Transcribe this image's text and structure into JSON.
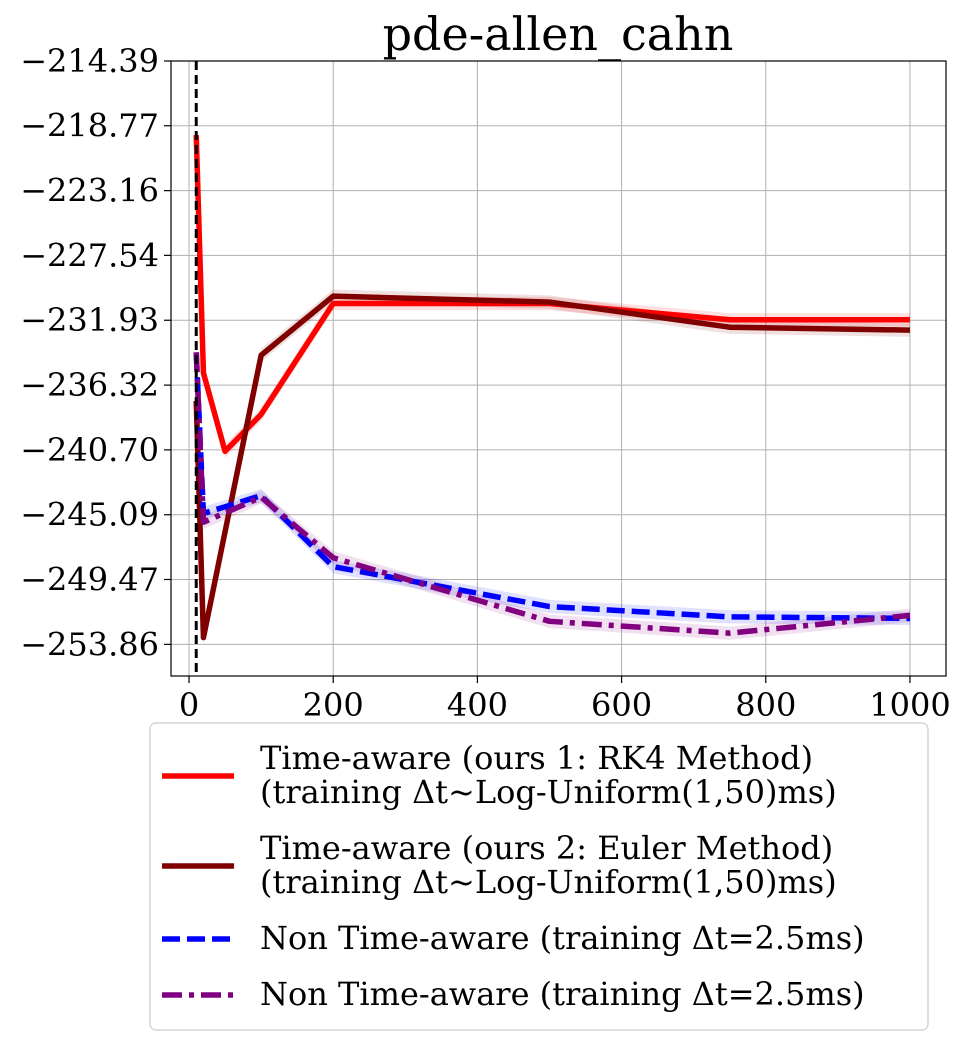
{
  "chart_data": {
    "type": "line",
    "title": "pde-allen_cahn",
    "xlabel": "",
    "ylabel": "",
    "xlim": [
      -25,
      1050
    ],
    "ylim": [
      -256.0,
      -214.39
    ],
    "x_ticks": [
      0,
      200,
      400,
      600,
      800,
      1000
    ],
    "x_tick_labels": [
      "0",
      "200",
      "400",
      "600",
      "800",
      "1000"
    ],
    "y_ticks": [
      -214.39,
      -218.77,
      -223.16,
      -227.54,
      -231.93,
      -236.32,
      -240.7,
      -245.09,
      -249.47,
      -253.86
    ],
    "y_tick_labels": [
      "−214.39",
      "−218.77",
      "−223.16",
      "−227.54",
      "−231.93",
      "−236.32",
      "−240.70",
      "−245.09",
      "−249.47",
      "−253.86"
    ],
    "grid": true,
    "vline_x": 10,
    "legend_position": "below",
    "series": [
      {
        "name": "Time-aware (ours 1: RK4 Method)\n(training Δt~Log-Uniform(1,50)ms)",
        "legend_lines": [
          "Time-aware (ours 1: RK4 Method)",
          "(training Δt~Log-Uniform(1,50)ms)"
        ],
        "color": "#ff0000",
        "style": "solid",
        "x": [
          10,
          20,
          50,
          100,
          200,
          500,
          750,
          1000
        ],
        "y": [
          -219.4,
          -235.5,
          -240.8,
          -238.3,
          -230.8,
          -230.8,
          -231.9,
          -231.9
        ]
      },
      {
        "name": "Time-aware (ours 2: Euler Method)\n(training Δt~Log-Uniform(1,50)ms)",
        "legend_lines": [
          "Time-aware (ours 2: Euler Method)",
          "(training Δt~Log-Uniform(1,50)ms)"
        ],
        "color": "#800000",
        "style": "solid",
        "x": [
          10,
          20,
          100,
          200,
          500,
          750,
          1000
        ],
        "y": [
          -237.4,
          -253.4,
          -234.3,
          -230.3,
          -230.7,
          -232.4,
          -232.6
        ]
      },
      {
        "name": "Non Time-aware (training Δt=2.5ms)",
        "legend_lines": [
          "Non Time-aware (training Δt=2.5ms)"
        ],
        "color": "#0000ff",
        "style": "dashed",
        "x": [
          10,
          20,
          100,
          200,
          500,
          750,
          1000
        ],
        "y": [
          -234.1,
          -245.0,
          -243.8,
          -248.6,
          -251.3,
          -252.0,
          -252.1
        ]
      },
      {
        "name": "Non Time-aware (training Δt=2.5ms)",
        "legend_lines": [
          "Non Time-aware (training Δt=2.5ms)"
        ],
        "color": "#800080",
        "style": "dashdot",
        "x": [
          10,
          20,
          100,
          200,
          500,
          750,
          1000
        ],
        "y": [
          -234.1,
          -245.6,
          -243.9,
          -248.0,
          -252.3,
          -253.1,
          -251.9
        ]
      }
    ]
  }
}
